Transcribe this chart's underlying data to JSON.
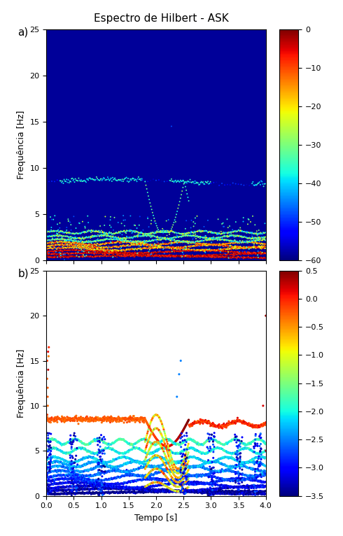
{
  "title": "Espectro de Hilbert - ASK",
  "xlabel": "Tempo [s]",
  "ylabel": "Frequência [Hz]",
  "freq_min": 0,
  "freq_max": 25,
  "time_min": 0,
  "time_max": 4,
  "cbar1_min": -60,
  "cbar1_max": 0,
  "cbar2_min": -3.5,
  "cbar2_max": 0.5,
  "carrier_freq": 8.5,
  "background_color_upper": "#000099",
  "background_color_lower": "#ffffff",
  "label_a": "a)",
  "label_b": "b)"
}
